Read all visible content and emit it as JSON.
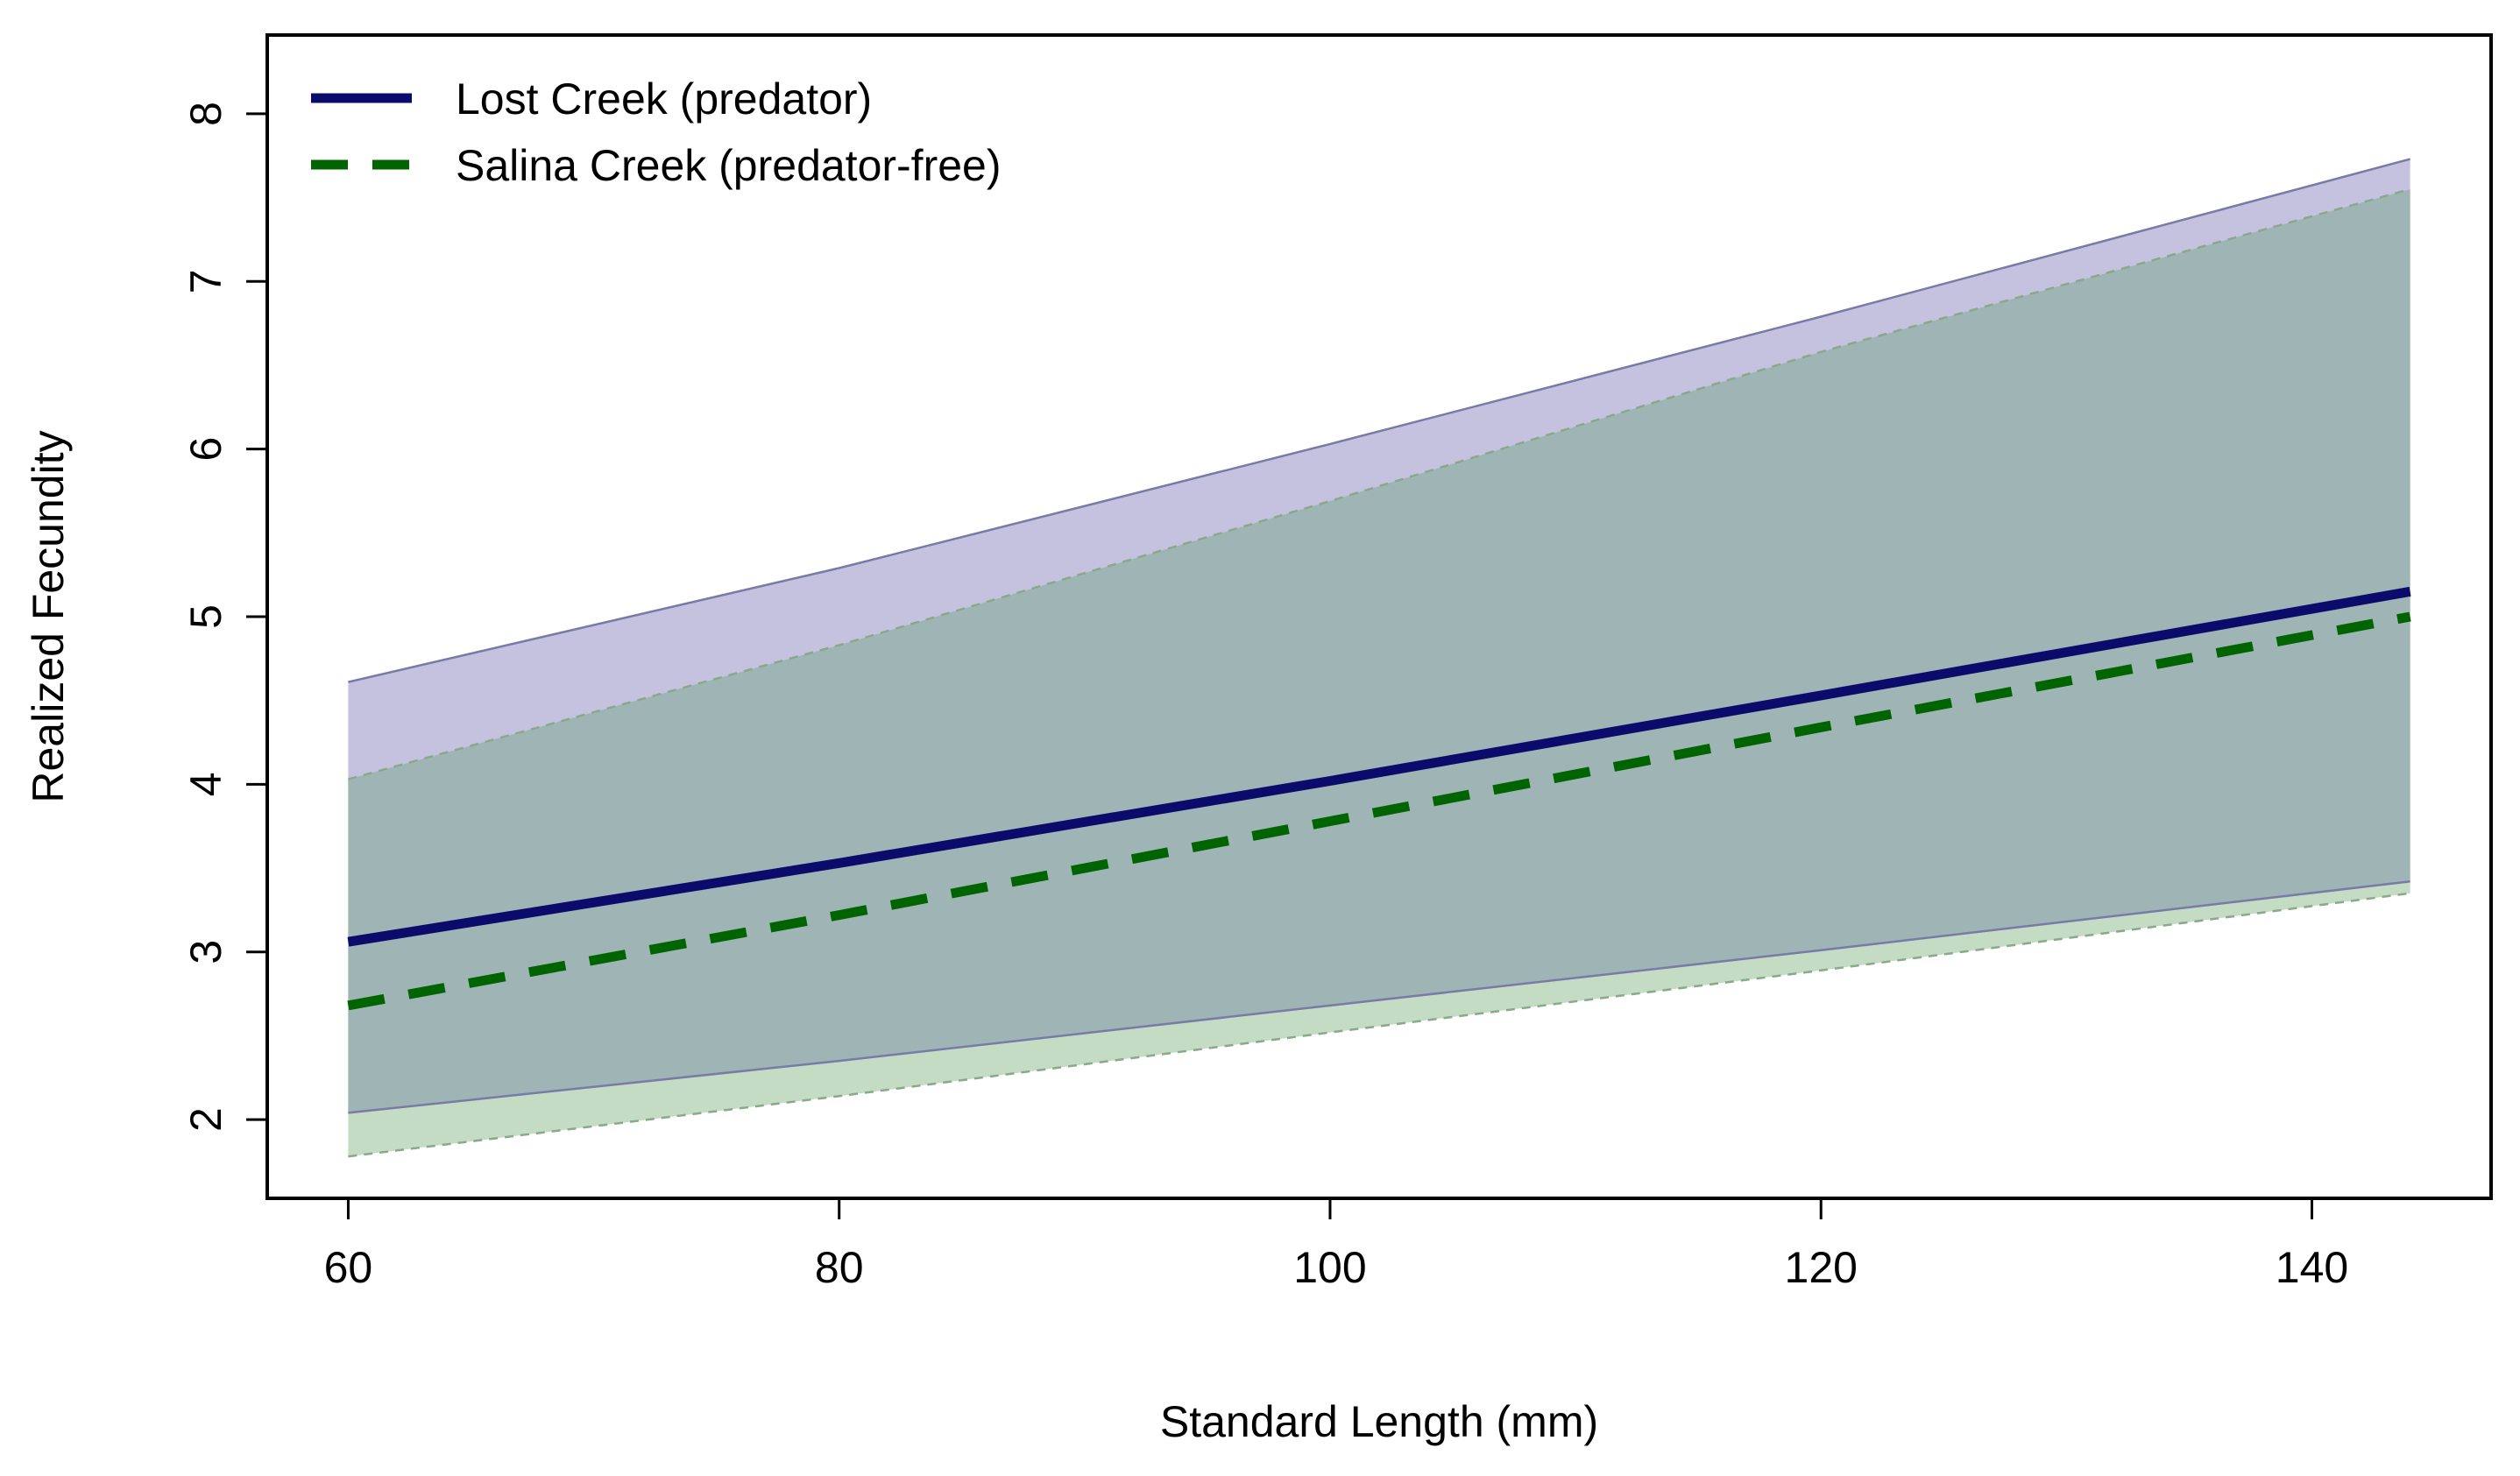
{
  "chart_data": {
    "type": "line",
    "title": "",
    "xlabel": "Standard Length (mm)",
    "ylabel": "Realized Fecundity",
    "xlim": [
      56.7,
      147.3
    ],
    "ylim": [
      1.53,
      8.47
    ],
    "x_ticks": [
      60,
      80,
      100,
      120,
      140
    ],
    "y_ticks": [
      2,
      3,
      4,
      5,
      6,
      7,
      8
    ],
    "x_tick_labels": [
      "60",
      "80",
      "100",
      "120",
      "140"
    ],
    "y_tick_labels": [
      "2",
      "3",
      "4",
      "5",
      "6",
      "7",
      "8"
    ],
    "grid": false,
    "legend_position": "top-left",
    "series": [
      {
        "name": "Lost Creek (predator)",
        "line_style": "solid",
        "color": "#0b0b6b",
        "band_fill": "#c5c2e0",
        "band_edge": "#7a7aa8",
        "x": [
          60,
          80,
          100,
          120,
          144
        ],
        "y": [
          3.06,
          3.53,
          4.02,
          4.53,
          5.15
        ],
        "upper": {
          "x": [
            60,
            80,
            100,
            120,
            144
          ],
          "y": [
            4.61,
            5.29,
            6.03,
            6.79,
            7.73
          ]
        },
        "lower": {
          "x": [
            60,
            80,
            100,
            120,
            144
          ],
          "y": [
            2.04,
            2.35,
            2.68,
            3.01,
            3.42
          ]
        }
      },
      {
        "name": "Salina Creek (predator-free)",
        "line_style": "dashed",
        "color": "#006400",
        "band_fill": "#c4dcc4",
        "band_edge": "#8aa88a",
        "x": [
          60,
          80,
          100,
          120,
          144
        ],
        "y": [
          2.68,
          3.22,
          3.78,
          4.34,
          5.0
        ],
        "upper": {
          "x": [
            60,
            80,
            100,
            120,
            144
          ],
          "y": [
            4.03,
            4.83,
            5.69,
            6.58,
            7.55
          ]
        },
        "lower": {
          "x": [
            60,
            80,
            100,
            120,
            144
          ],
          "y": [
            1.78,
            2.14,
            2.52,
            2.89,
            3.35
          ]
        }
      }
    ],
    "overlap_fill": "#9fb4b4"
  }
}
